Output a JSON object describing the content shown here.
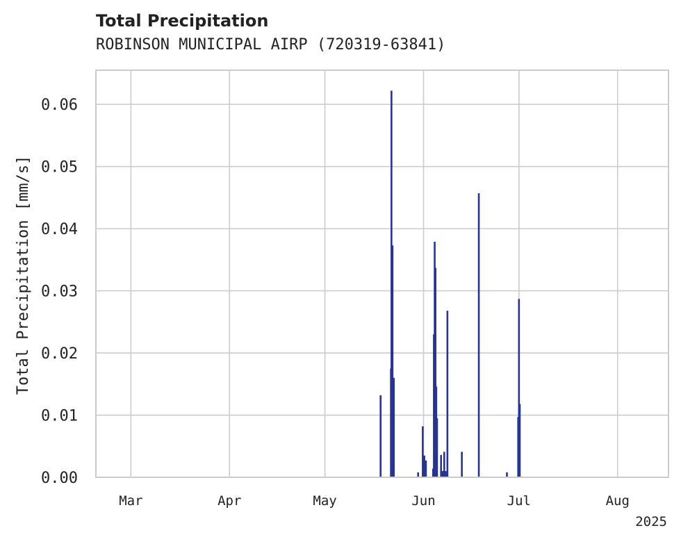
{
  "chart_data": {
    "type": "bar",
    "title": "Total Precipitation",
    "subtitle": "ROBINSON MUNICIPAL AIRP (720319-63841)",
    "ylabel": "Total Precipitation [mm/s]",
    "xlabel": "",
    "x_axis": {
      "type": "date",
      "range": [
        "2025-02-18",
        "2025-08-17"
      ],
      "ticks": [
        {
          "date": "2025-03-01",
          "label": "Mar"
        },
        {
          "date": "2025-04-01",
          "label": "Apr"
        },
        {
          "date": "2025-05-01",
          "label": "May"
        },
        {
          "date": "2025-06-01",
          "label": "Jun"
        },
        {
          "date": "2025-07-01",
          "label": "Jul"
        },
        {
          "date": "2025-08-01",
          "label": "Aug"
        }
      ],
      "year_label": "2025"
    },
    "y_axis": {
      "range": [
        0,
        0.0655
      ],
      "ticks": [
        0,
        0.01,
        0.02,
        0.03,
        0.04,
        0.05,
        0.06
      ],
      "tick_labels": [
        "0.00",
        "0.01",
        "0.02",
        "0.03",
        "0.04",
        "0.05",
        "0.06"
      ]
    },
    "grid": true,
    "bar_color": "#27358f",
    "series": [
      {
        "values": [
          {
            "date": "2025-05-18T12:00",
            "value": 0.0132
          },
          {
            "date": "2025-05-21T18:00",
            "value": 0.0175
          },
          {
            "date": "2025-05-21T22:00",
            "value": 0.0622
          },
          {
            "date": "2025-05-22T06:00",
            "value": 0.0373
          },
          {
            "date": "2025-05-22T16:00",
            "value": 0.016
          },
          {
            "date": "2025-05-30T07:00",
            "value": 0.0008
          },
          {
            "date": "2025-05-31T18:00",
            "value": 0.0082
          },
          {
            "date": "2025-06-01T06:00",
            "value": 0.0035
          },
          {
            "date": "2025-06-01T18:00",
            "value": 0.0027
          },
          {
            "date": "2025-06-04T00:00",
            "value": 0.0014
          },
          {
            "date": "2025-06-04T06:00",
            "value": 0.023
          },
          {
            "date": "2025-06-04T12:00",
            "value": 0.0379
          },
          {
            "date": "2025-06-04T18:00",
            "value": 0.0337
          },
          {
            "date": "2025-06-05T00:00",
            "value": 0.0146
          },
          {
            "date": "2025-06-05T06:00",
            "value": 0.0095
          },
          {
            "date": "2025-06-06T12:00",
            "value": 0.0036
          },
          {
            "date": "2025-06-07T00:00",
            "value": 0.001
          },
          {
            "date": "2025-06-07T12:00",
            "value": 0.0041
          },
          {
            "date": "2025-06-08T00:00",
            "value": 0.001
          },
          {
            "date": "2025-06-08T12:00",
            "value": 0.0268
          },
          {
            "date": "2025-06-13T01:00",
            "value": 0.0041
          },
          {
            "date": "2025-06-18T09:00",
            "value": 0.0457
          },
          {
            "date": "2025-06-27T05:00",
            "value": 0.0008
          },
          {
            "date": "2025-06-30T18:00",
            "value": 0.0097
          },
          {
            "date": "2025-07-01T00:00",
            "value": 0.0287
          },
          {
            "date": "2025-07-01T06:00",
            "value": 0.0118
          }
        ]
      }
    ]
  }
}
